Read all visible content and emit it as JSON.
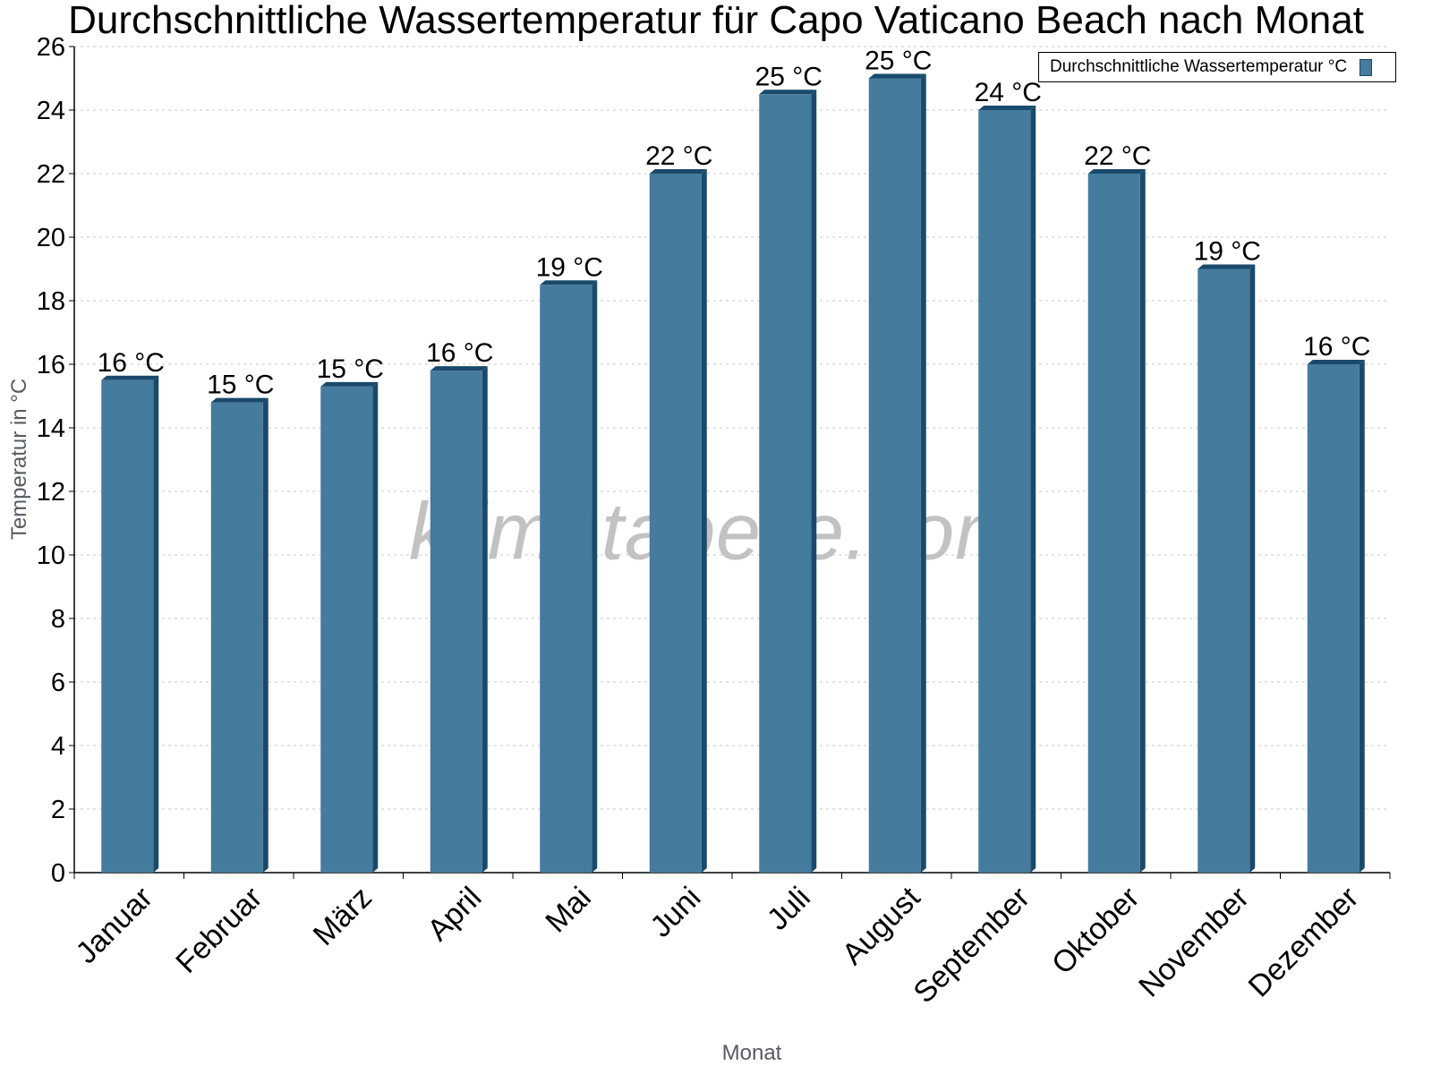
{
  "chart_data": {
    "type": "bar",
    "title": "Durchschnittliche Wassertemperatur für Capo Vaticano Beach nach Monat",
    "xlabel": "Monat",
    "ylabel": "Temperatur in °C",
    "ylim": [
      0,
      26
    ],
    "yticks": [
      0,
      2,
      4,
      6,
      8,
      10,
      12,
      14,
      16,
      18,
      20,
      22,
      24,
      26
    ],
    "grid": true,
    "legend_position": "top-right",
    "categories": [
      "Januar",
      "Februar",
      "März",
      "April",
      "Mai",
      "Juni",
      "Juli",
      "August",
      "September",
      "Oktober",
      "November",
      "Dezember"
    ],
    "series": [
      {
        "name": "Durchschnittliche Wassertemperatur °C",
        "color": "#457b9d",
        "values": [
          15.5,
          14.8,
          15.3,
          15.8,
          18.5,
          22.0,
          24.5,
          25.0,
          24.0,
          22.0,
          19.0,
          16.0
        ],
        "data_labels": [
          "16 °C",
          "15 °C",
          "15 °C",
          "16 °C",
          "19 °C",
          "22 °C",
          "25 °C",
          "25 °C",
          "24 °C",
          "22 °C",
          "19 °C",
          "16 °C"
        ]
      }
    ],
    "watermark": "klimatabelle.com"
  },
  "colors": {
    "bar_front": "#457b9d",
    "bar_side": "#1a4a6b",
    "grid": "#c8c8c8",
    "axis_label": "#555b62"
  }
}
